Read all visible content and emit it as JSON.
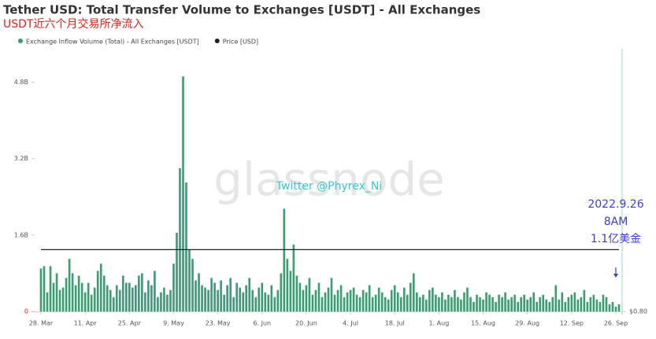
{
  "chart_data": {
    "type": "bar",
    "title": "Tether USD: Total Transfer Volume to Exchanges [USDT] - All Exchanges",
    "subtitle": "USDT近六个月交易所净流入",
    "watermark": "glassnode",
    "annotations": [
      "Twitter @Phyrex_Ni",
      "2022.9.26",
      "8AM",
      "1.1亿美金"
    ],
    "categories": [
      "28. Mar",
      null,
      null,
      null,
      null,
      null,
      null,
      null,
      null,
      null,
      null,
      null,
      null,
      null,
      "11. Apr",
      null,
      null,
      null,
      null,
      null,
      null,
      null,
      null,
      null,
      null,
      null,
      null,
      null,
      "25. Apr",
      null,
      null,
      null,
      null,
      null,
      null,
      null,
      null,
      null,
      null,
      null,
      null,
      null,
      "9. May",
      null,
      null,
      null,
      null,
      null,
      null,
      null,
      null,
      null,
      null,
      null,
      null,
      null,
      "23. May",
      null,
      null,
      null,
      null,
      null,
      null,
      null,
      null,
      null,
      null,
      null,
      null,
      null,
      "6. Jun",
      null,
      null,
      null,
      null,
      null,
      null,
      null,
      null,
      null,
      null,
      null,
      null,
      null,
      "20. Jun",
      null,
      null,
      null,
      null,
      null,
      null,
      null,
      null,
      null,
      null,
      null,
      null,
      null,
      "4. Jul",
      null,
      null,
      null,
      null,
      null,
      null,
      null,
      null,
      null,
      null,
      null,
      null,
      null,
      "18. Jul",
      null,
      null,
      null,
      null,
      null,
      null,
      null,
      null,
      null,
      null,
      null,
      null,
      null,
      "1. Aug",
      null,
      null,
      null,
      null,
      null,
      null,
      null,
      null,
      null,
      null,
      null,
      null,
      null,
      "15. Aug",
      null,
      null,
      null,
      null,
      null,
      null,
      null,
      null,
      null,
      null,
      null,
      null,
      null,
      "29. Aug",
      null,
      null,
      null,
      null,
      null,
      null,
      null,
      null,
      null,
      null,
      null,
      null,
      null,
      "12. Sep",
      null,
      null,
      null,
      null,
      null,
      null,
      null,
      null,
      null,
      null,
      null,
      null,
      null,
      "26. Sep",
      null
    ],
    "series": [
      {
        "name": "Exchange Inflow Volume (Total) - All Exchanges [USDT]",
        "color": "#3a9e72",
        "values": [
          0.9,
          0.95,
          0.4,
          0.95,
          0.6,
          0.8,
          0.45,
          0.5,
          0.7,
          1.1,
          0.8,
          0.55,
          0.75,
          0.6,
          0.4,
          0.6,
          0.35,
          0.5,
          0.85,
          1.0,
          0.75,
          0.55,
          0.45,
          0.3,
          0.55,
          0.45,
          0.75,
          0.6,
          0.6,
          0.5,
          0.55,
          0.75,
          0.8,
          0.4,
          0.65,
          0.55,
          0.85,
          0.3,
          0.4,
          0.5,
          0.35,
          0.45,
          1.0,
          1.65,
          3.0,
          4.92,
          2.7,
          1.3,
          1.1,
          0.65,
          0.8,
          0.55,
          0.5,
          0.45,
          0.7,
          0.6,
          0.45,
          0.65,
          0.35,
          0.55,
          0.7,
          0.3,
          0.6,
          0.5,
          0.4,
          0.55,
          0.7,
          0.45,
          0.3,
          0.5,
          0.6,
          0.4,
          0.35,
          0.55,
          0.3,
          0.45,
          0.8,
          2.15,
          1.1,
          0.85,
          1.4,
          0.75,
          0.6,
          0.45,
          0.55,
          0.7,
          0.35,
          0.45,
          0.6,
          0.3,
          0.4,
          0.5,
          0.7,
          0.35,
          0.45,
          0.55,
          0.3,
          0.4,
          0.45,
          0.5,
          0.35,
          0.3,
          0.45,
          0.4,
          0.55,
          0.3,
          0.35,
          0.5,
          0.4,
          0.3,
          0.25,
          0.45,
          0.55,
          0.4,
          0.3,
          0.5,
          0.35,
          0.6,
          0.8,
          0.4,
          0.3,
          0.35,
          0.25,
          0.45,
          0.5,
          0.35,
          0.3,
          0.4,
          0.25,
          0.35,
          0.3,
          0.45,
          0.3,
          0.25,
          0.4,
          0.5,
          0.3,
          0.2,
          0.35,
          0.3,
          0.25,
          0.4,
          0.35,
          0.3,
          0.2,
          0.35,
          0.3,
          0.4,
          0.25,
          0.3,
          0.35,
          0.2,
          0.3,
          0.35,
          0.25,
          0.3,
          0.4,
          0.2,
          0.3,
          0.35,
          0.25,
          0.2,
          0.3,
          0.55,
          0.25,
          0.4,
          0.2,
          0.3,
          0.35,
          0.4,
          0.25,
          0.3,
          0.45,
          0.2,
          0.3,
          0.35,
          0.25,
          0.2,
          0.35,
          0.3,
          0.15,
          0.2,
          0.1,
          0.15
        ]
      },
      {
        "name": "Price [USD]",
        "color": "#222222",
        "type": "line",
        "axis": "y2",
        "values": [
          1,
          1,
          1,
          1,
          1,
          1,
          1,
          1,
          1,
          1,
          1,
          1,
          1,
          1,
          1,
          1,
          1,
          1,
          1,
          1,
          1,
          1,
          1,
          1,
          1,
          1,
          1,
          1,
          1,
          1,
          1,
          1,
          1,
          1,
          1,
          1,
          1,
          1,
          1,
          1,
          1,
          1,
          1,
          1,
          1,
          1,
          1,
          1,
          1,
          1,
          1,
          1,
          1,
          1,
          1,
          1,
          1,
          1,
          1,
          1,
          1,
          1,
          1,
          1,
          1,
          1,
          1,
          1,
          1,
          1,
          1,
          1,
          1,
          1,
          1,
          1,
          1,
          1,
          1,
          1,
          1,
          1,
          1,
          1,
          1,
          1,
          1,
          1,
          1,
          1,
          1,
          1,
          1,
          1,
          1,
          1,
          1,
          1,
          1,
          1,
          1,
          1,
          1,
          1,
          1,
          1,
          1,
          1,
          1,
          1,
          1,
          1,
          1,
          1,
          1,
          1,
          1,
          1,
          1,
          1,
          1,
          1,
          1,
          1,
          1,
          1,
          1,
          1,
          1,
          1,
          1,
          1,
          1,
          1,
          1,
          1,
          1,
          1,
          1,
          1,
          1,
          1,
          1,
          1,
          1,
          1,
          1,
          1,
          1,
          1,
          1,
          1,
          1,
          1,
          1,
          1,
          1,
          1,
          1,
          1,
          1,
          1,
          1,
          1,
          1,
          1,
          1,
          1,
          1,
          1,
          1,
          1,
          1,
          1,
          1,
          1,
          1,
          1,
          1,
          1,
          1,
          1,
          1,
          1
        ]
      }
    ],
    "ylim": [
      0,
      5.5
    ],
    "yticks": [
      0,
      {
        "value": 1.6,
        "label": "1.6B"
      },
      {
        "value": 3.2,
        "label": "3.2B"
      },
      {
        "value": 4.8,
        "label": "4.8B"
      }
    ],
    "y2lim": [
      0.8,
      1.65
    ],
    "y2ticks": [
      {
        "value": 0.8,
        "label": "$0.80"
      }
    ]
  }
}
